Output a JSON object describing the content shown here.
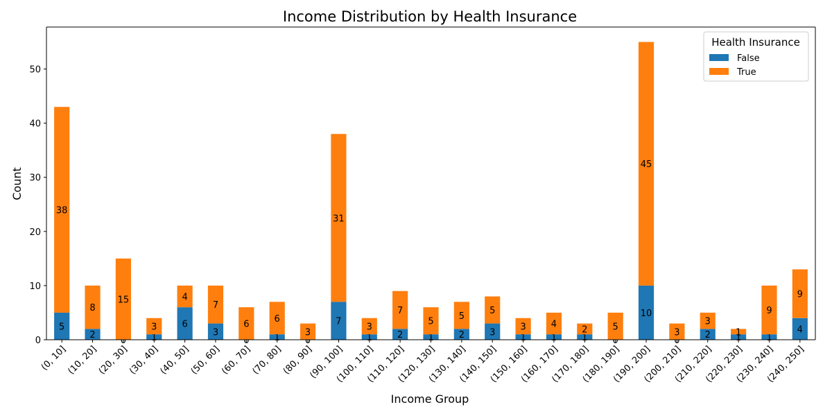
{
  "chart_data": {
    "type": "bar",
    "stacked": true,
    "title": "Income Distribution by Health Insurance",
    "xlabel": "Income Group",
    "ylabel": "Count",
    "ylim": [
      0,
      57.75
    ],
    "yticks": [
      0,
      10,
      20,
      30,
      40,
      50
    ],
    "grid": false,
    "legend_placement": "top-right",
    "legend_title": "Health Insurance",
    "categories": [
      "(0, 10]",
      "(10, 20]",
      "(20, 30]",
      "(30, 40]",
      "(40, 50]",
      "(50, 60]",
      "(60, 70]",
      "(70, 80]",
      "(80, 90]",
      "(90, 100]",
      "(100, 110]",
      "(110, 120]",
      "(120, 130]",
      "(130, 140]",
      "(140, 150]",
      "(150, 160]",
      "(160, 170]",
      "(170, 180]",
      "(180, 190]",
      "(190, 200]",
      "(200, 210]",
      "(210, 220]",
      "(220, 230]",
      "(230, 240]",
      "(240, 250]"
    ],
    "series": [
      {
        "name": "False",
        "color": "#1f77b4",
        "values": [
          5,
          2,
          0,
          1,
          6,
          3,
          0,
          1,
          0,
          7,
          1,
          2,
          1,
          2,
          3,
          1,
          1,
          1,
          0,
          10,
          0,
          2,
          1,
          1,
          4
        ]
      },
      {
        "name": "True",
        "color": "#ff7f0e",
        "values": [
          38,
          8,
          15,
          3,
          4,
          7,
          6,
          6,
          3,
          31,
          3,
          7,
          5,
          5,
          5,
          3,
          4,
          2,
          5,
          45,
          3,
          3,
          1,
          9,
          9
        ]
      }
    ]
  }
}
